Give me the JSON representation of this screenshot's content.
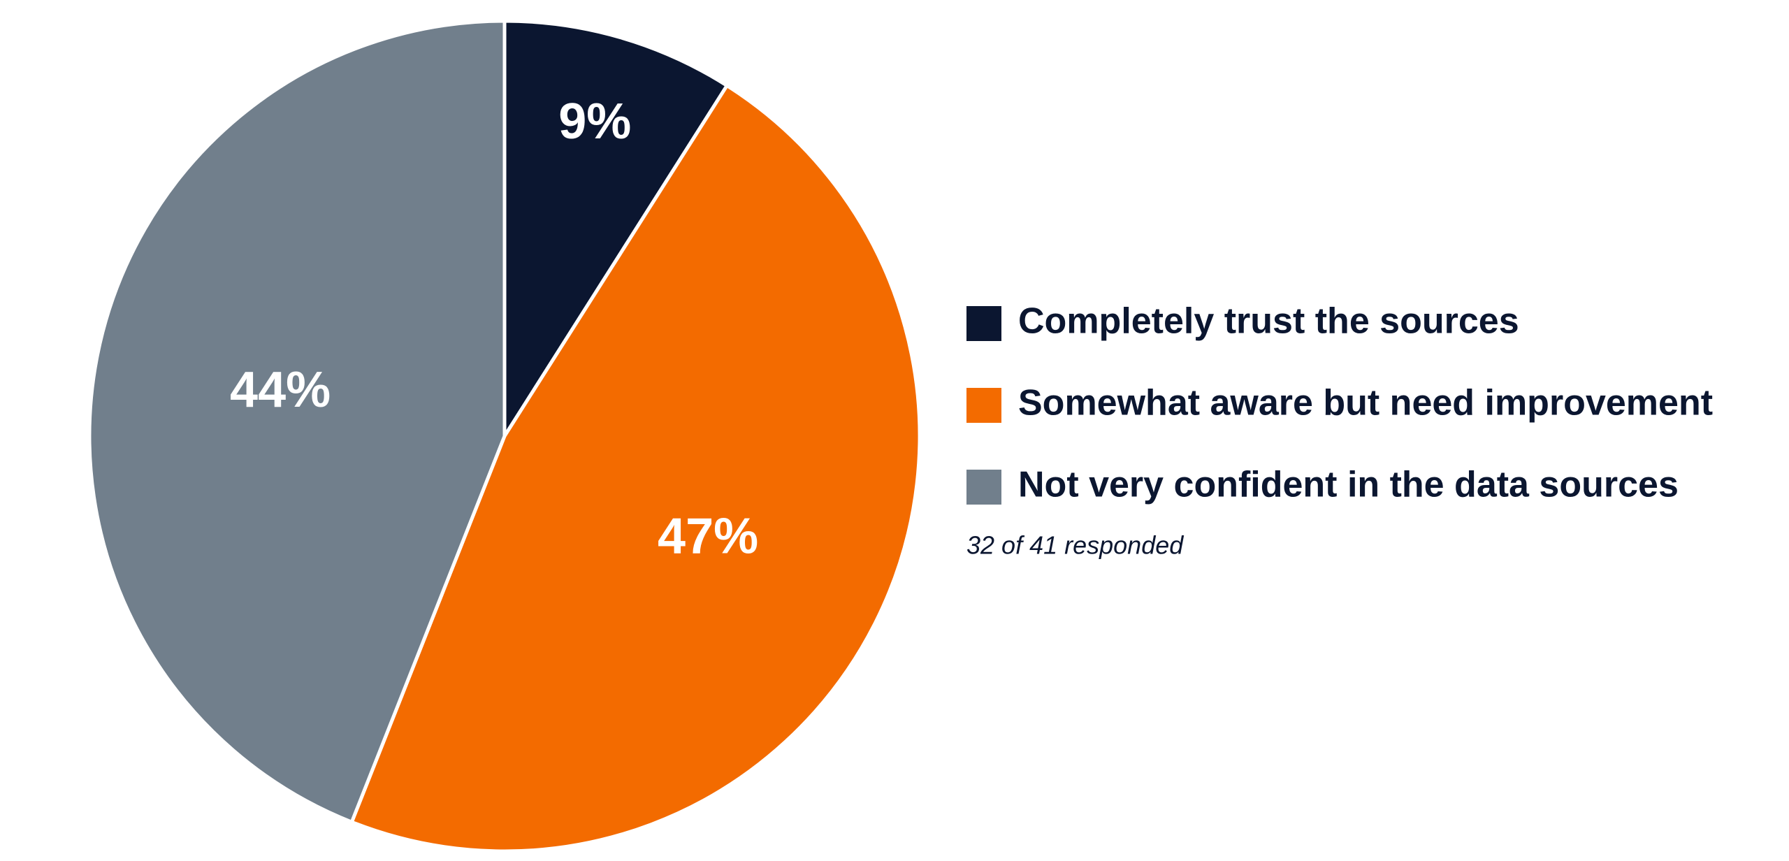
{
  "chart_data": {
    "type": "pie",
    "categories": [
      "Completely trust the sources",
      "Somewhat aware but need improvement",
      "Not very confident in the data sources"
    ],
    "values": [
      9,
      47,
      44
    ],
    "value_labels": [
      "9%",
      "47%",
      "44%"
    ],
    "colors": [
      "#0b1630",
      "#f36b00",
      "#717f8c"
    ],
    "note": "32 of 41 responded"
  }
}
